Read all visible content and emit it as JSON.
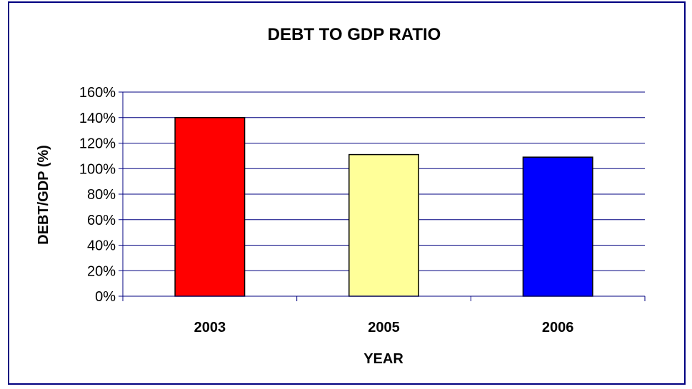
{
  "chart_data": {
    "type": "bar",
    "title": "DEBT TO GDP RATIO",
    "xlabel": "YEAR",
    "ylabel": "DEBT/GDP (%)",
    "categories": [
      "2003",
      "2005",
      "2006"
    ],
    "values": [
      140,
      111,
      109
    ],
    "bar_colors": [
      "#FF0000",
      "#FFFF99",
      "#0000FF"
    ],
    "ylim": [
      0,
      160
    ],
    "ytick_step": 20,
    "ytick_labels": [
      "0%",
      "20%",
      "40%",
      "60%",
      "80%",
      "100%",
      "120%",
      "140%",
      "160%"
    ],
    "grid": true,
    "grid_color": "#000080",
    "axis_color": "#000080",
    "frame_color": "#000080",
    "legend": "none"
  }
}
